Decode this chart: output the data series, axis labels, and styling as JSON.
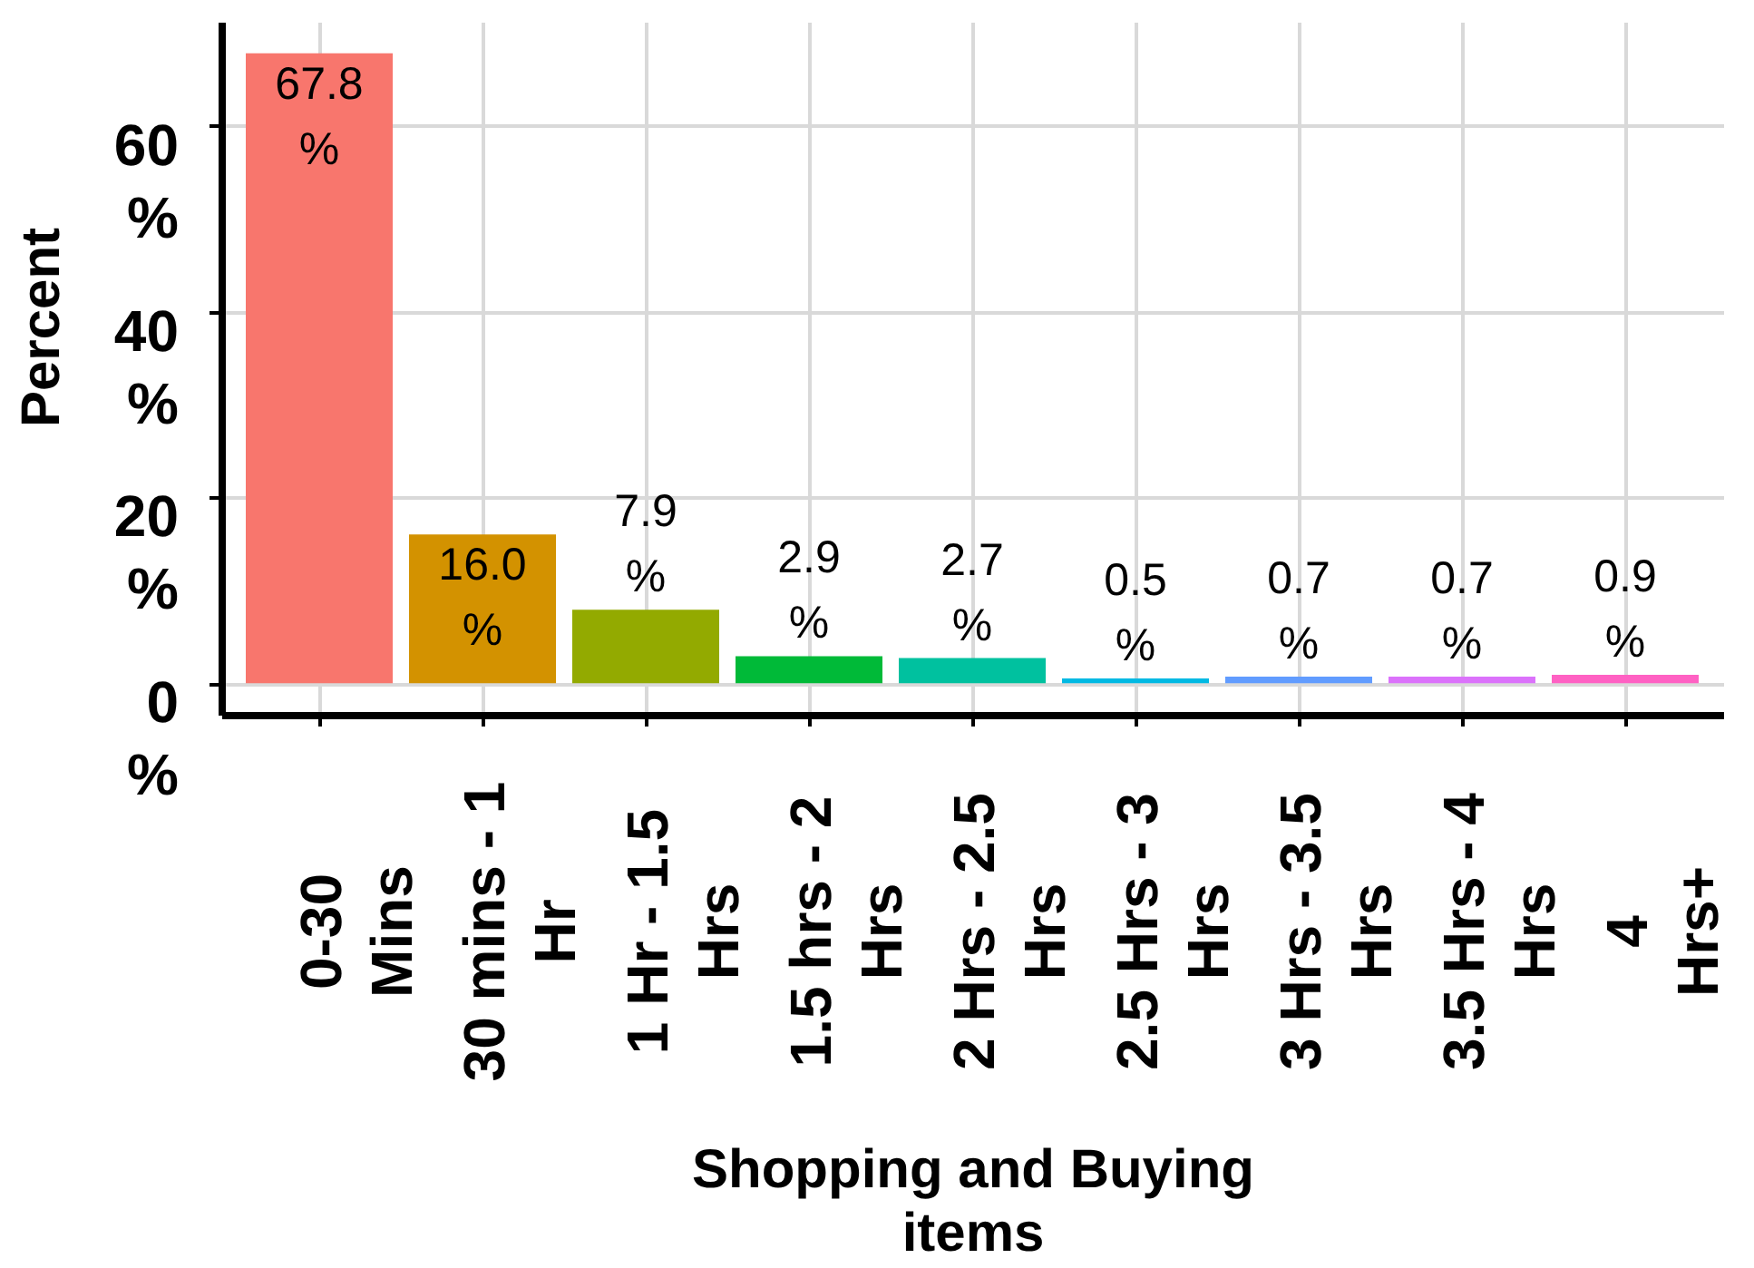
{
  "chart_data": {
    "type": "bar",
    "xlabel": "Shopping and Buying items",
    "ylabel": "Percent",
    "categories": [
      "0-30 Mins",
      "30 mins - 1 Hr",
      "1 Hr - 1.5 Hrs",
      "1.5 hrs - 2 Hrs",
      "2 Hrs - 2.5 Hrs",
      "2.5 Hrs - 3 Hrs",
      "3 Hrs - 3.5 Hrs",
      "3.5 Hrs - 4 Hrs",
      "4 Hrs+"
    ],
    "values": [
      67.8,
      16.0,
      7.9,
      2.9,
      2.7,
      0.5,
      0.7,
      0.7,
      0.9
    ],
    "colors": [
      "#f8766d",
      "#d39200",
      "#93aa00",
      "#00ba38",
      "#00c19f",
      "#00b9e3",
      "#619cff",
      "#db72fb",
      "#ff61c3"
    ],
    "value_labels": [
      "67.8 %",
      "16.0 %",
      "7.9 %",
      "2.9 %",
      "2.7 %",
      "0.5 %",
      "0.7 %",
      "0.7 %",
      "0.9 %"
    ],
    "ylim": [
      -3.4,
      71.2
    ],
    "yticks": [
      {
        "value": 0,
        "label": "0 %"
      },
      {
        "value": 20,
        "label": "20 %"
      },
      {
        "value": 40,
        "label": "40 %"
      },
      {
        "value": 60,
        "label": "60 %"
      }
    ],
    "grid": true
  }
}
